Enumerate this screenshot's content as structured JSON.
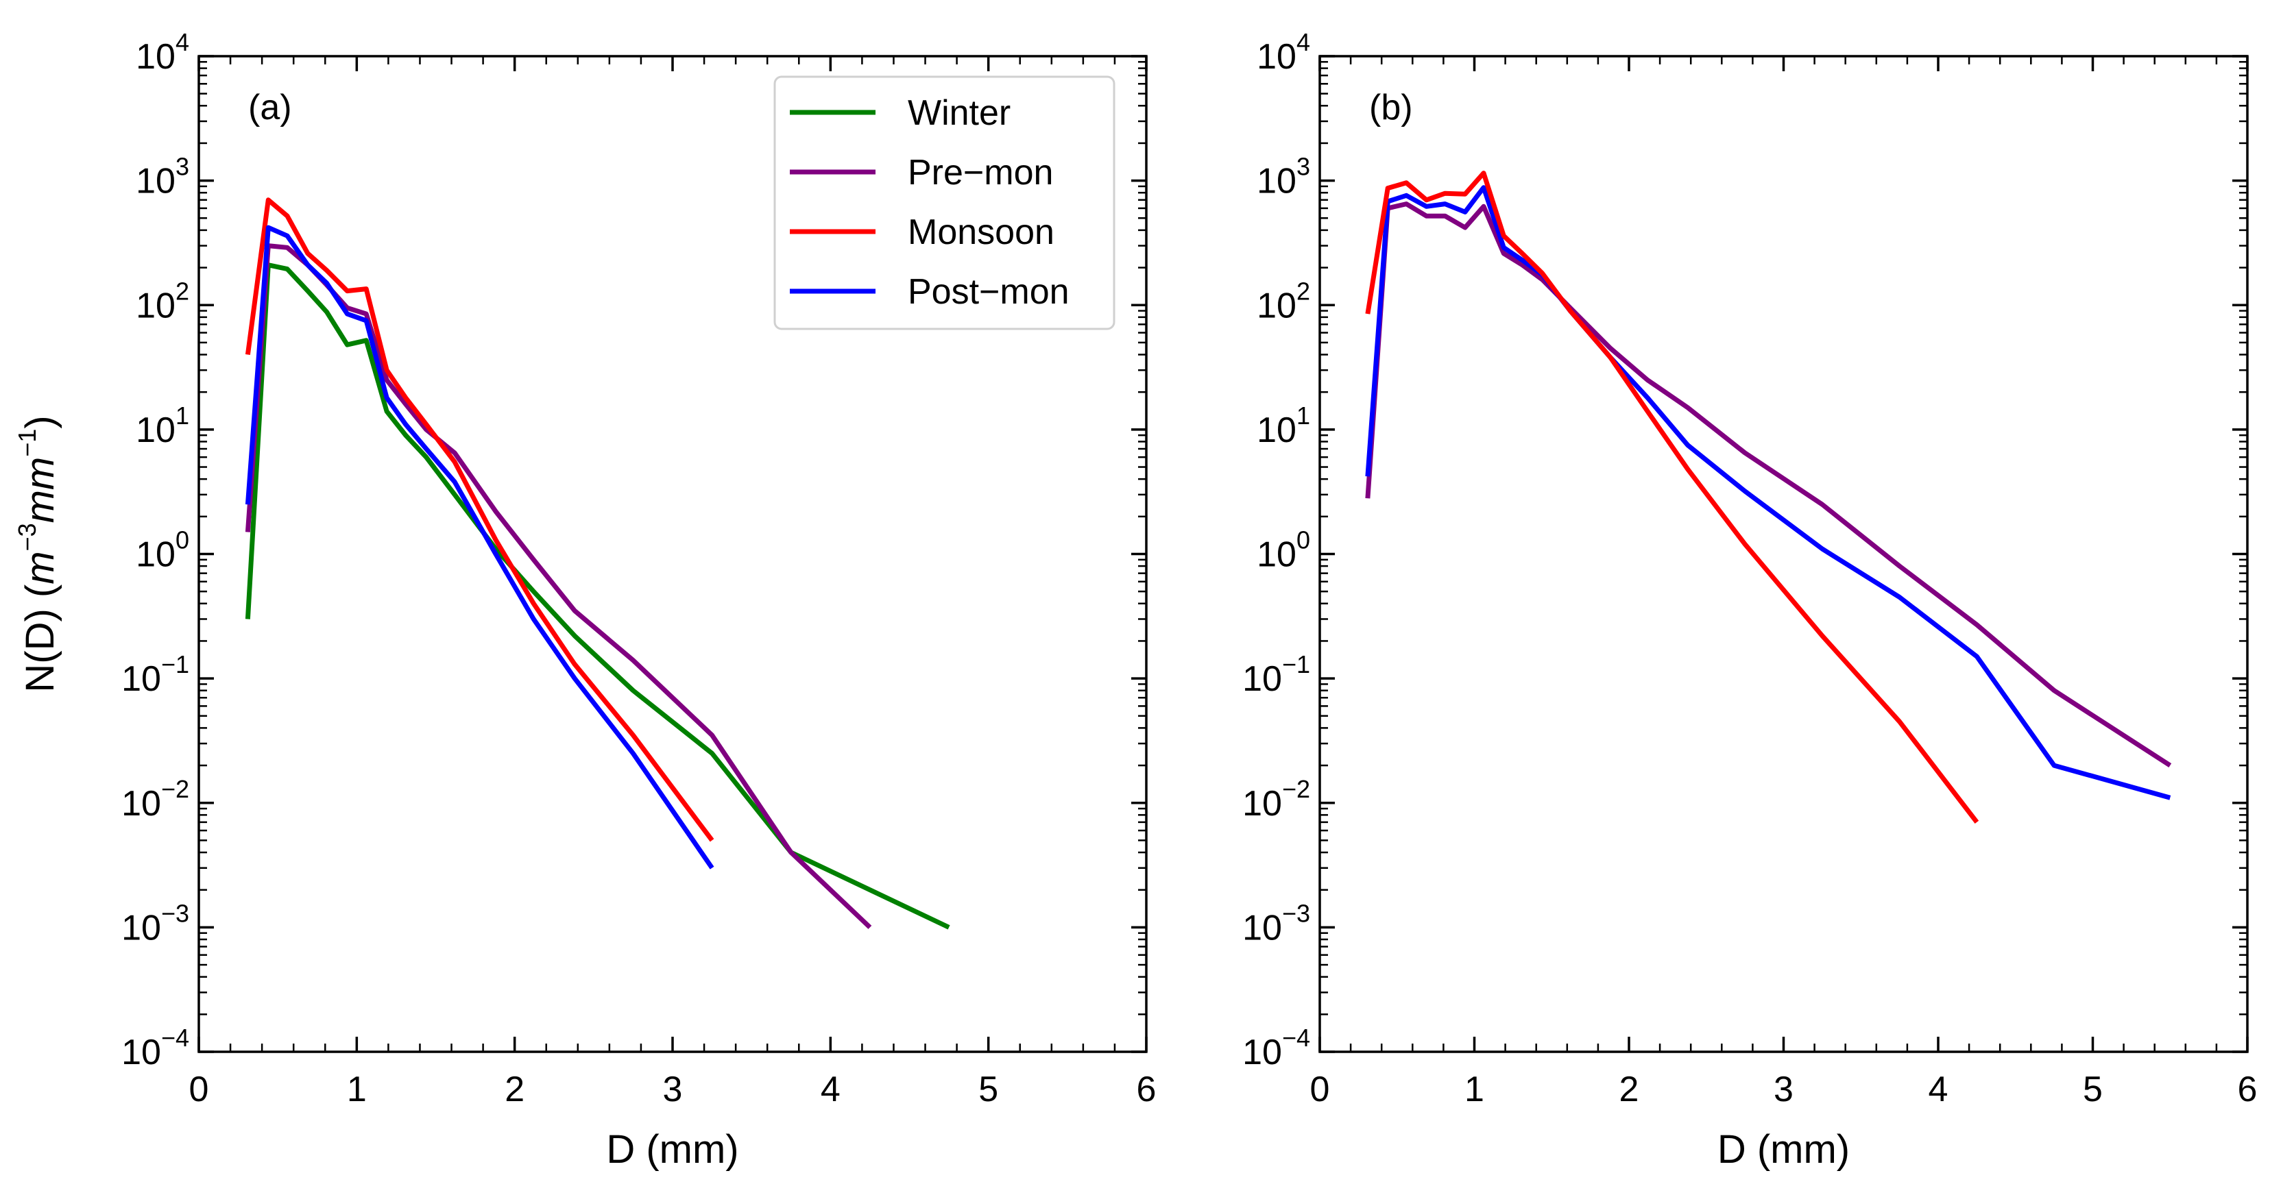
{
  "chart_data": [
    {
      "type": "line",
      "panel_label": "(a)",
      "xlabel": "D (mm)",
      "ylabel": "N(D) (m−3mm−1)",
      "ylabel_parts": {
        "prefix": "N(D) (",
        "m": "m",
        "exp1": "−3",
        "mm": "mm",
        "exp2": "−1",
        "suffix": ")"
      },
      "y_scale": "log",
      "xlim": [
        0,
        6
      ],
      "ylim": [
        0.0001,
        10000
      ],
      "x_ticks": [
        0,
        1,
        2,
        3,
        4,
        5,
        6
      ],
      "x_tick_labels": [
        "0",
        "1",
        "2",
        "3",
        "4",
        "5",
        "6"
      ],
      "y_ticks": [
        0.0001,
        0.001,
        0.01,
        0.1,
        1,
        10,
        100,
        1000,
        10000
      ],
      "y_tick_labels": [
        {
          "base": "10",
          "exp": "−4"
        },
        {
          "base": "10",
          "exp": "−3"
        },
        {
          "base": "10",
          "exp": "−2"
        },
        {
          "base": "10",
          "exp": "−1"
        },
        {
          "base": "10",
          "exp": "0"
        },
        {
          "base": "10",
          "exp": "1"
        },
        {
          "base": "10",
          "exp": "2"
        },
        {
          "base": "10",
          "exp": "3"
        },
        {
          "base": "10",
          "exp": "4"
        }
      ],
      "legend": {
        "placement": "top-right",
        "entries": [
          "Winter",
          "Pre−mon",
          "Monsoon",
          "Post−mon"
        ]
      },
      "series": [
        {
          "name": "Winter",
          "color": "#008000",
          "x": [
            0.31,
            0.44,
            0.56,
            0.69,
            0.81,
            0.94,
            1.06,
            1.19,
            1.31,
            1.44,
            1.62,
            1.88,
            2.12,
            2.38,
            2.75,
            3.25,
            3.75,
            4.25,
            4.75
          ],
          "y": [
            0.3,
            210,
            195,
            130,
            88,
            48,
            52,
            14,
            9,
            6,
            3,
            1.1,
            0.5,
            0.22,
            0.08,
            0.025,
            0.004,
            0.002,
            0.001
          ]
        },
        {
          "name": "Pre−mon",
          "color": "#800080",
          "x": [
            0.31,
            0.44,
            0.56,
            0.69,
            0.81,
            0.94,
            1.06,
            1.19,
            1.31,
            1.44,
            1.62,
            1.88,
            2.12,
            2.38,
            2.75,
            3.25,
            3.75,
            4.25
          ],
          "y": [
            1.5,
            300,
            290,
            210,
            145,
            95,
            85,
            25,
            16,
            10,
            6.5,
            2.2,
            0.9,
            0.35,
            0.14,
            0.035,
            0.004,
            0.001
          ]
        },
        {
          "name": "Monsoon",
          "color": "#ff0000",
          "x": [
            0.31,
            0.44,
            0.56,
            0.69,
            0.81,
            0.94,
            1.06,
            1.19,
            1.31,
            1.44,
            1.62,
            1.88,
            2.12,
            2.38,
            2.75,
            3.25
          ],
          "y": [
            40,
            700,
            520,
            260,
            190,
            130,
            135,
            30,
            18,
            11,
            5.5,
            1.3,
            0.4,
            0.13,
            0.035,
            0.005
          ]
        },
        {
          "name": "Post−mon",
          "color": "#0000ff",
          "x": [
            0.31,
            0.44,
            0.56,
            0.69,
            0.81,
            0.94,
            1.06,
            1.19,
            1.31,
            1.44,
            1.62,
            1.88,
            2.12,
            2.38,
            2.75,
            3.25
          ],
          "y": [
            2.5,
            420,
            360,
            210,
            150,
            85,
            75,
            18,
            11,
            7,
            3.8,
            1.0,
            0.3,
            0.1,
            0.025,
            0.003
          ]
        }
      ]
    },
    {
      "type": "line",
      "panel_label": "(b)",
      "xlabel": "D (mm)",
      "y_scale": "log",
      "xlim": [
        0,
        6
      ],
      "ylim": [
        0.0001,
        10000
      ],
      "x_ticks": [
        0,
        1,
        2,
        3,
        4,
        5,
        6
      ],
      "x_tick_labels": [
        "0",
        "1",
        "2",
        "3",
        "4",
        "5",
        "6"
      ],
      "y_ticks": [
        0.0001,
        0.001,
        0.01,
        0.1,
        1,
        10,
        100,
        1000,
        10000
      ],
      "y_tick_labels": [
        {
          "base": "10",
          "exp": "−4"
        },
        {
          "base": "10",
          "exp": "−3"
        },
        {
          "base": "10",
          "exp": "−2"
        },
        {
          "base": "10",
          "exp": "−1"
        },
        {
          "base": "10",
          "exp": "0"
        },
        {
          "base": "10",
          "exp": "1"
        },
        {
          "base": "10",
          "exp": "2"
        },
        {
          "base": "10",
          "exp": "3"
        },
        {
          "base": "10",
          "exp": "4"
        }
      ],
      "series": [
        {
          "name": "Pre−mon",
          "color": "#800080",
          "x": [
            0.31,
            0.44,
            0.56,
            0.69,
            0.81,
            0.94,
            1.06,
            1.19,
            1.31,
            1.44,
            1.62,
            1.88,
            2.12,
            2.38,
            2.75,
            3.25,
            3.75,
            4.25,
            4.75,
            5.5
          ],
          "y": [
            2.8,
            600,
            650,
            520,
            520,
            420,
            620,
            260,
            210,
            160,
            95,
            45,
            25,
            15,
            6.5,
            2.5,
            0.8,
            0.27,
            0.08,
            0.02
          ]
        },
        {
          "name": "Post−mon",
          "color": "#0000ff",
          "x": [
            0.31,
            0.44,
            0.56,
            0.69,
            0.81,
            0.94,
            1.06,
            1.19,
            1.31,
            1.44,
            1.62,
            1.88,
            2.12,
            2.38,
            2.75,
            3.25,
            3.75,
            4.25,
            4.75,
            5.5
          ],
          "y": [
            4.2,
            680,
            760,
            620,
            650,
            560,
            880,
            290,
            230,
            175,
            90,
            38,
            18,
            7.5,
            3.2,
            1.1,
            0.45,
            0.15,
            0.02,
            0.011
          ]
        },
        {
          "name": "Monsoon",
          "color": "#ff0000",
          "x": [
            0.31,
            0.44,
            0.56,
            0.69,
            0.81,
            0.94,
            1.06,
            1.19,
            1.31,
            1.44,
            1.62,
            1.88,
            2.12,
            2.38,
            2.75,
            3.25,
            3.75,
            4.25
          ],
          "y": [
            85,
            870,
            960,
            700,
            790,
            780,
            1150,
            360,
            260,
            180,
            90,
            38,
            14,
            4.8,
            1.2,
            0.22,
            0.045,
            0.007
          ]
        }
      ]
    }
  ]
}
